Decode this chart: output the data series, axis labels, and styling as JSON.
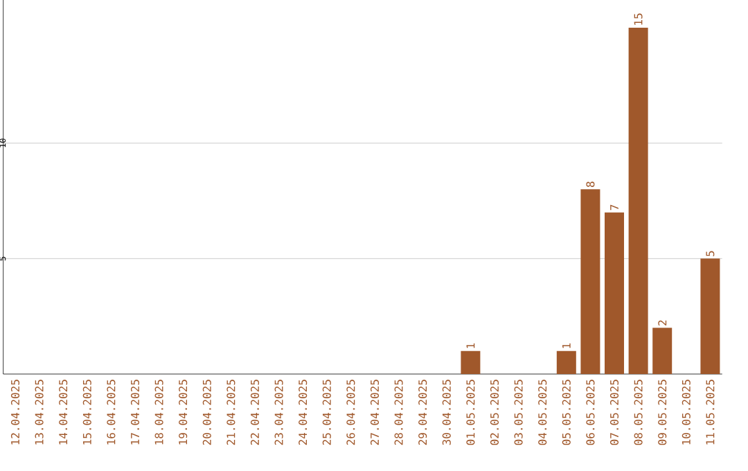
{
  "chart_data": {
    "type": "bar",
    "categories": [
      "12.04.2025",
      "13.04.2025",
      "14.04.2025",
      "15.04.2025",
      "16.04.2025",
      "17.04.2025",
      "18.04.2025",
      "19.04.2025",
      "20.04.2025",
      "21.04.2025",
      "22.04.2025",
      "23.04.2025",
      "24.04.2025",
      "25.04.2025",
      "26.04.2025",
      "27.04.2025",
      "28.04.2025",
      "29.04.2025",
      "30.04.2025",
      "01.05.2025",
      "02.05.2025",
      "03.05.2025",
      "04.05.2025",
      "05.05.2025",
      "06.05.2025",
      "07.05.2025",
      "08.05.2025",
      "09.05.2025",
      "10.05.2025",
      "11.05.2025"
    ],
    "values": [
      0,
      0,
      0,
      0,
      0,
      0,
      0,
      0,
      0,
      0,
      0,
      0,
      0,
      0,
      0,
      0,
      0,
      0,
      0,
      1,
      0,
      0,
      0,
      1,
      8,
      7,
      15,
      2,
      0,
      5
    ],
    "value_labels": [
      null,
      null,
      null,
      null,
      null,
      null,
      null,
      null,
      null,
      null,
      null,
      null,
      null,
      null,
      null,
      null,
      null,
      null,
      null,
      "1",
      null,
      null,
      null,
      "1",
      "8",
      "7",
      "15",
      "2",
      null,
      "5"
    ],
    "color": "#a0582b",
    "ylim": [
      0,
      16.2
    ],
    "yticks": [
      5,
      10
    ],
    "grid": "y"
  }
}
